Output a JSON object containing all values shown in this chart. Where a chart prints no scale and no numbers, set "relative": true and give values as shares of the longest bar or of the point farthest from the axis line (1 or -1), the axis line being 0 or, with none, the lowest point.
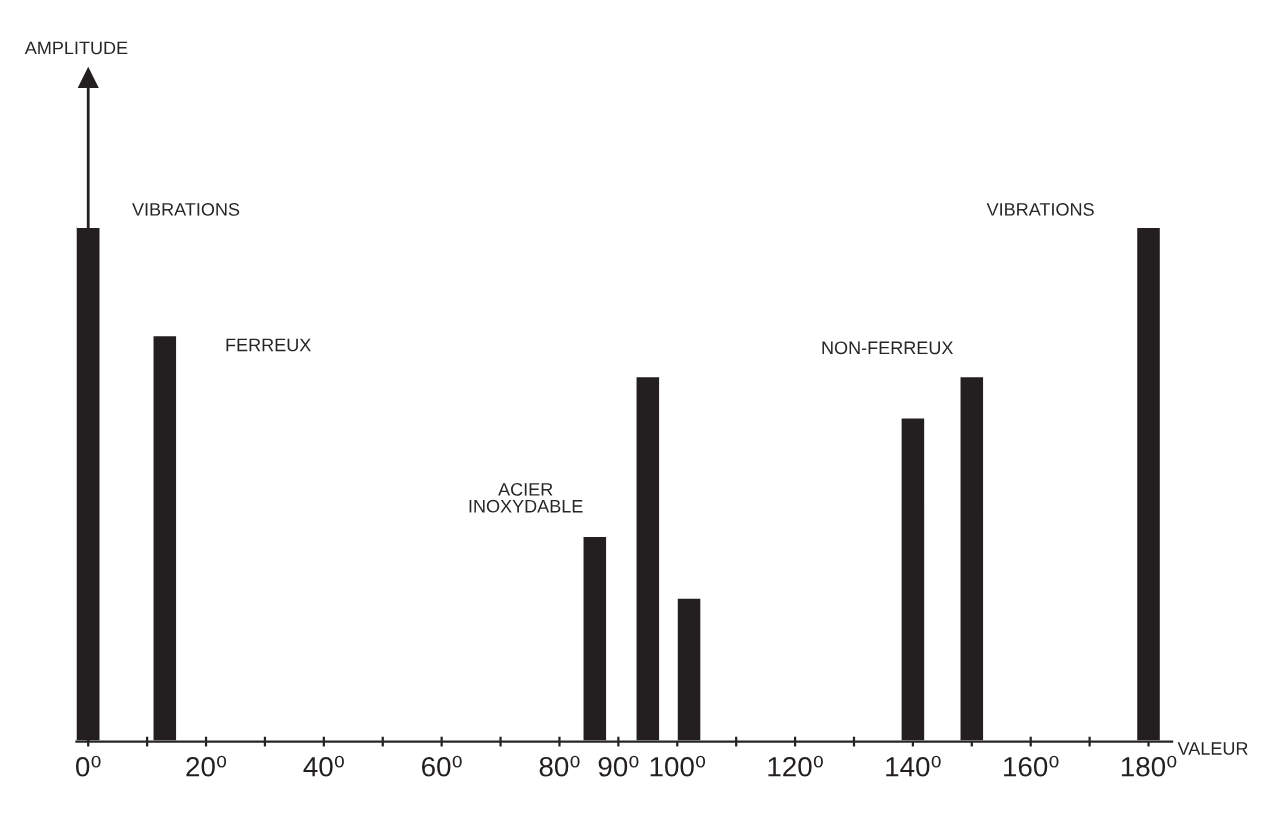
{
  "chart_data": {
    "type": "bar",
    "relative": true,
    "xlabel": "VALEUR",
    "x": [
      0,
      13,
      86,
      95,
      102,
      140,
      150,
      180
    ],
    "values": [
      1,
      0.79,
      0.4,
      0.71,
      0.28,
      0.63,
      0.71,
      1
    ],
    "color": "#231f20",
    "xlim": [
      -2,
      184
    ],
    "xticks": [
      {
        "value": 0,
        "label": "0⁰"
      },
      {
        "value": 10,
        "label": null
      },
      {
        "value": 20,
        "label": "20⁰"
      },
      {
        "value": 30,
        "label": null
      },
      {
        "value": 40,
        "label": "40⁰"
      },
      {
        "value": 50,
        "label": null
      },
      {
        "value": 60,
        "label": "60⁰"
      },
      {
        "value": 70,
        "label": null
      },
      {
        "value": 80,
        "label": "80⁰"
      },
      {
        "value": 90,
        "label": "90⁰"
      },
      {
        "value": 100,
        "label": "100⁰"
      },
      {
        "value": 110,
        "label": null
      },
      {
        "value": 120,
        "label": "120⁰"
      },
      {
        "value": 130,
        "label": null
      },
      {
        "value": 140,
        "label": "140⁰"
      },
      {
        "value": 150,
        "label": null
      },
      {
        "value": 160,
        "label": "160⁰"
      },
      {
        "value": 170,
        "label": null
      },
      {
        "value": 180,
        "label": "180⁰"
      }
    ],
    "annotations": [
      "AMPLITUDE",
      "VIBRATIONS",
      "FERREUX",
      "ACIER\nINOXYDABLE",
      "NON-FERREUX",
      "VIBRATIONS"
    ],
    "legend": false
  }
}
